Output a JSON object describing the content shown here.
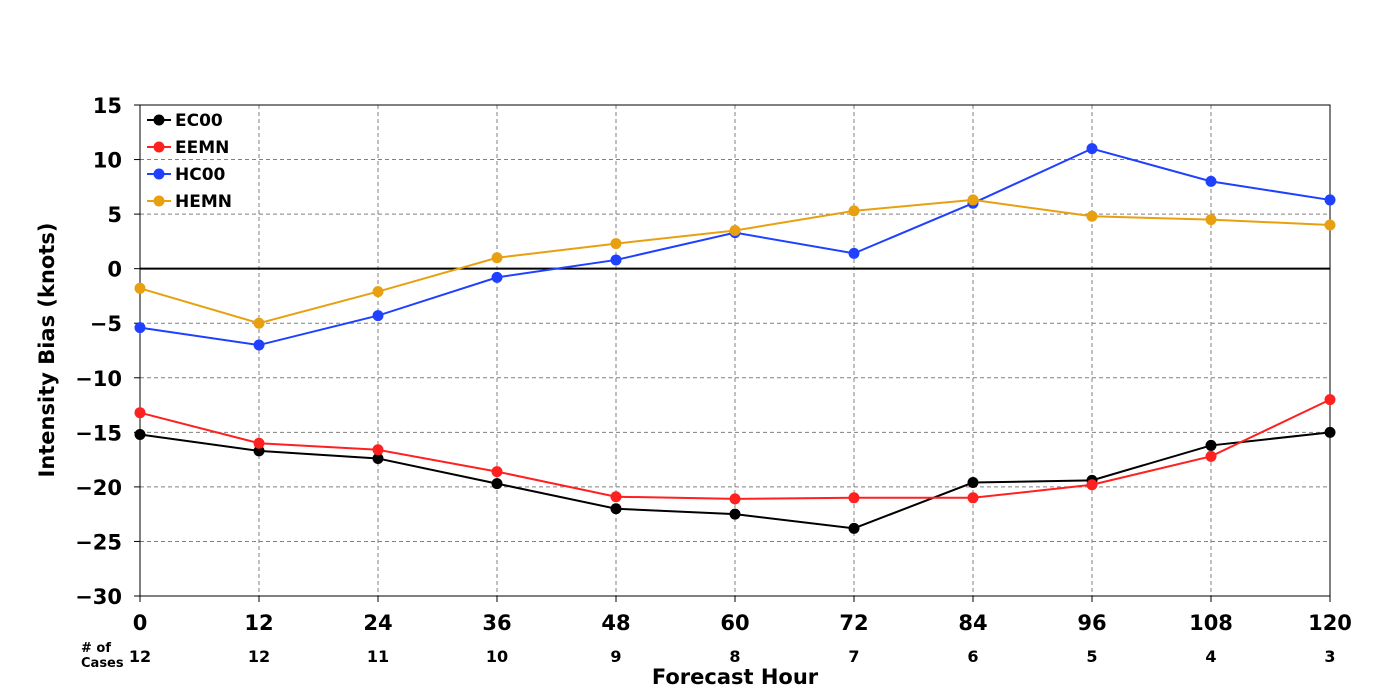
{
  "chart_data": {
    "type": "line",
    "xlabel": "Forecast Hour",
    "ylabel": "Intensity Bias (knots)",
    "x": [
      0,
      12,
      24,
      36,
      48,
      60,
      72,
      84,
      96,
      108,
      120
    ],
    "xlim": [
      0,
      120
    ],
    "ylim": [
      -30,
      15
    ],
    "yticks": [
      15,
      10,
      5,
      0,
      -5,
      -10,
      -15,
      -20,
      -25,
      -30
    ],
    "grid": true,
    "legend_position": "top-left",
    "cases_label": "# of\nCases",
    "cases": [
      12,
      12,
      11,
      10,
      9,
      8,
      7,
      6,
      5,
      4,
      3
    ],
    "series": [
      {
        "name": "EC00",
        "color": "#000000",
        "values": [
          -15.2,
          -16.7,
          -17.4,
          -19.7,
          -22.0,
          -22.5,
          -23.8,
          -19.6,
          -19.4,
          -16.2,
          -15.0
        ]
      },
      {
        "name": "EEMN",
        "color": "#ff2020",
        "values": [
          -13.2,
          -16.0,
          -16.6,
          -18.6,
          -20.9,
          -21.1,
          -21.0,
          -21.0,
          -19.8,
          -17.2,
          -12.0
        ]
      },
      {
        "name": "HC00",
        "color": "#2040ff",
        "values": [
          -5.4,
          -7.0,
          -4.3,
          -0.8,
          0.8,
          3.3,
          1.4,
          6.0,
          11.0,
          8.0,
          6.3
        ]
      },
      {
        "name": "HEMN",
        "color": "#e8a010",
        "values": [
          -1.8,
          -5.0,
          -2.1,
          1.0,
          2.3,
          3.5,
          5.3,
          6.3,
          4.8,
          4.5,
          4.0
        ]
      }
    ]
  }
}
